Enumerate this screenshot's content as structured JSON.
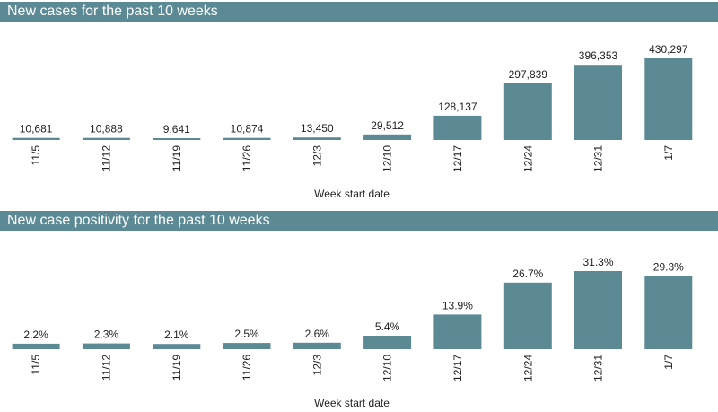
{
  "chart_data": [
    {
      "type": "bar",
      "title": "New cases for the past 10 weeks",
      "xlabel": "Week start date",
      "ylabel": "",
      "categories": [
        "11/5",
        "11/12",
        "11/19",
        "11/26",
        "12/3",
        "12/10",
        "12/17",
        "12/24",
        "12/31",
        "1/7"
      ],
      "values": [
        10681,
        10888,
        9641,
        10874,
        13450,
        29512,
        128137,
        297839,
        396353,
        430297
      ],
      "value_labels": [
        "10,681",
        "10,888",
        "9,641",
        "10,874",
        "13,450",
        "29,512",
        "128,137",
        "297,839",
        "396,353",
        "430,297"
      ],
      "ylim": [
        0,
        430297
      ],
      "grid": false,
      "color": "#5b8a95"
    },
    {
      "type": "bar",
      "title": "New case positivity for the past 10 weeks",
      "xlabel": "Week start date",
      "ylabel": "",
      "categories": [
        "11/5",
        "11/12",
        "11/19",
        "11/26",
        "12/3",
        "12/10",
        "12/17",
        "12/24",
        "12/31",
        "1/7"
      ],
      "values": [
        2.2,
        2.3,
        2.1,
        2.5,
        2.6,
        5.4,
        13.9,
        26.7,
        31.3,
        29.3
      ],
      "value_labels": [
        "2.2%",
        "2.3%",
        "2.1%",
        "2.5%",
        "2.6%",
        "5.4%",
        "13.9%",
        "26.7%",
        "31.3%",
        "29.3%"
      ],
      "ylim": [
        0,
        31.3
      ],
      "grid": false,
      "color": "#5b8a95"
    }
  ]
}
